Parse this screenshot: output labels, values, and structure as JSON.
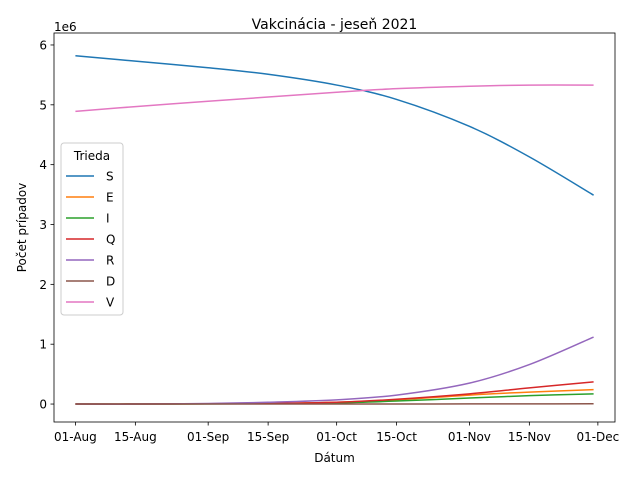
{
  "chart_data": {
    "type": "line",
    "title": "Vakcinácia - jeseň 2021",
    "xlabel": "Dátum",
    "ylabel": "Počet prípadov",
    "y_offset_text": "1e6",
    "x_range": [
      "2021-07-27",
      "2021-12-05"
    ],
    "ylim": [
      -0.3,
      6.2
    ],
    "y_ticks": [
      0,
      1,
      2,
      3,
      4,
      5,
      6
    ],
    "y_tick_labels": [
      "0",
      "1",
      "2",
      "3",
      "4",
      "5",
      "6"
    ],
    "x_ticks": [
      "2021-08-01",
      "2021-08-15",
      "2021-09-01",
      "2021-09-15",
      "2021-10-01",
      "2021-10-15",
      "2021-11-01",
      "2021-11-15",
      "2021-12-01"
    ],
    "x_tick_labels": [
      "01-Aug",
      "15-Aug",
      "01-Sep",
      "15-Sep",
      "01-Oct",
      "15-Oct",
      "01-Nov",
      "15-Nov",
      "01-Dec"
    ],
    "grid": false,
    "legend": {
      "title": "Trieda",
      "placement": "center-left"
    },
    "x": [
      "2021-08-01",
      "2021-08-15",
      "2021-09-01",
      "2021-09-15",
      "2021-10-01",
      "2021-10-15",
      "2021-11-01",
      "2021-11-15",
      "2021-11-30"
    ],
    "series": [
      {
        "name": "S",
        "color": "#1f77b4",
        "values": [
          5.82,
          5.73,
          5.62,
          5.51,
          5.33,
          5.09,
          4.64,
          4.13,
          3.49
        ]
      },
      {
        "name": "E",
        "color": "#ff7f0e",
        "values": [
          0.0,
          0.0,
          0.005,
          0.01,
          0.03,
          0.07,
          0.15,
          0.2,
          0.24
        ]
      },
      {
        "name": "I",
        "color": "#2ca02c",
        "values": [
          0.0,
          0.0,
          0.003,
          0.008,
          0.02,
          0.05,
          0.1,
          0.14,
          0.17
        ]
      },
      {
        "name": "Q",
        "color": "#d62728",
        "values": [
          0.0,
          0.0,
          0.005,
          0.01,
          0.03,
          0.08,
          0.17,
          0.27,
          0.37
        ]
      },
      {
        "name": "R",
        "color": "#9467bd",
        "values": [
          0.0,
          0.0,
          0.01,
          0.03,
          0.07,
          0.15,
          0.35,
          0.66,
          1.12
        ]
      },
      {
        "name": "D",
        "color": "#8c564b",
        "values": [
          0.0,
          0.0,
          0.0,
          0.0,
          0.0,
          0.0,
          0.002,
          0.003,
          0.005
        ]
      },
      {
        "name": "V",
        "color": "#e377c2",
        "values": [
          4.89,
          4.97,
          5.06,
          5.13,
          5.21,
          5.27,
          5.31,
          5.33,
          5.33
        ]
      }
    ]
  }
}
